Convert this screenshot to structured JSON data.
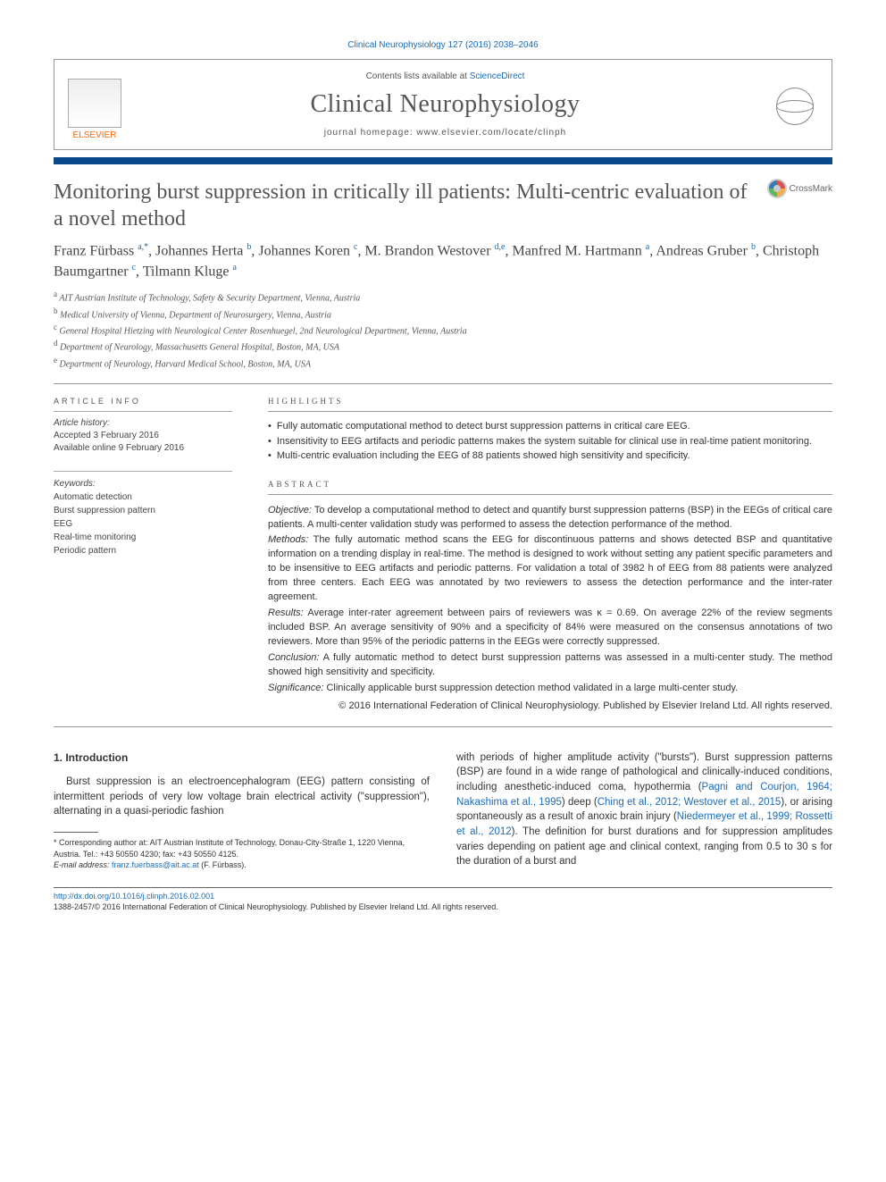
{
  "header": {
    "cite": "Clinical Neurophysiology 127 (2016) 2038–2046",
    "contents_prefix": "Contents lists available at ",
    "contents_link": "ScienceDirect",
    "journal_name": "Clinical Neurophysiology",
    "homepage": "journal homepage: www.elsevier.com/locate/clinph",
    "publisher": "ELSEVIER",
    "crossmark": "CrossMark"
  },
  "article": {
    "title": "Monitoring burst suppression in critically ill patients: Multi-centric evaluation of a novel method",
    "authors_html": "Franz Fürbass <sup>a,*</sup>, Johannes Herta <sup>b</sup>, Johannes Koren <sup>c</sup>, M. Brandon Westover <sup>d,e</sup>, Manfred M. Hartmann <sup>a</sup>, Andreas Gruber <sup>b</sup>, Christoph Baumgartner <sup>c</sup>, Tilmann Kluge <sup>a</sup>",
    "affiliations": [
      "a AIT Austrian Institute of Technology, Safety & Security Department, Vienna, Austria",
      "b Medical University of Vienna, Department of Neurosurgery, Vienna, Austria",
      "c General Hospital Hietzing with Neurological Center Rosenhuegel, 2nd Neurological Department, Vienna, Austria",
      "d Department of Neurology, Massachusetts General Hospital, Boston, MA, USA",
      "e Department of Neurology, Harvard Medical School, Boston, MA, USA"
    ]
  },
  "info": {
    "heading": "ARTICLE INFO",
    "history_label": "Article history:",
    "history1": "Accepted 3 February 2016",
    "history2": "Available online 9 February 2016",
    "keywords_label": "Keywords:",
    "keywords": [
      "Automatic detection",
      "Burst suppression pattern",
      "EEG",
      "Real-time monitoring",
      "Periodic pattern"
    ]
  },
  "highlights": {
    "heading": "HIGHLIGHTS",
    "items": [
      "Fully automatic computational method to detect burst suppression patterns in critical care EEG.",
      "Insensitivity to EEG artifacts and periodic patterns makes the system suitable for clinical use in real-time patient monitoring.",
      "Multi-centric evaluation including the EEG of 88 patients showed high sensitivity and specificity."
    ]
  },
  "abstract": {
    "heading": "ABSTRACT",
    "objective": "To develop a computational method to detect and quantify burst suppression patterns (BSP) in the EEGs of critical care patients. A multi-center validation study was performed to assess the detection performance of the method.",
    "methods": "The fully automatic method scans the EEG for discontinuous patterns and shows detected BSP and quantitative information on a trending display in real-time. The method is designed to work without setting any patient specific parameters and to be insensitive to EEG artifacts and periodic patterns. For validation a total of 3982 h of EEG from 88 patients were analyzed from three centers. Each EEG was annotated by two reviewers to assess the detection performance and the inter-rater agreement.",
    "results": "Average inter-rater agreement between pairs of reviewers was κ = 0.69. On average 22% of the review segments included BSP. An average sensitivity of 90% and a specificity of 84% were measured on the consensus annotations of two reviewers. More than 95% of the periodic patterns in the EEGs were correctly suppressed.",
    "conclusion": "A fully automatic method to detect burst suppression patterns was assessed in a multi-center study. The method showed high sensitivity and specificity.",
    "significance": "Clinically applicable burst suppression detection method validated in a large multi-center study.",
    "copyright": "© 2016 International Federation of Clinical Neurophysiology. Published by Elsevier Ireland Ltd. All rights reserved."
  },
  "body": {
    "sec1_heading": "1. Introduction",
    "col1_p1": "Burst suppression is an electroencephalogram (EEG) pattern consisting of intermittent periods of very low voltage brain electrical activity (\"suppression\"), alternating in a quasi-periodic fashion",
    "col2_p1a": "with periods of higher amplitude activity (\"bursts\"). Burst suppression patterns (BSP) are found in a wide range of pathological and clinically-induced conditions, including anesthetic-induced coma, hypothermia (",
    "ref1": "Pagni and Courjon, 1964; Nakashima et al., 1995",
    "col2_p1b": ") deep (",
    "ref2": "Ching et al., 2012; Westover et al., 2015",
    "col2_p1c": "), or arising spontaneously as a result of anoxic brain injury (",
    "ref3": "Niedermeyer et al., 1999; Rossetti et al., 2012",
    "col2_p1d": "). The definition for burst durations and for suppression amplitudes varies depending on patient age and clinical context, ranging from 0.5 to 30 s for the duration of a burst and"
  },
  "footnote": {
    "corr": "* Corresponding author at: AIT Austrian Institute of Technology, Donau-City-Straße 1, 1220 Vienna, Austria. Tel.: +43 50550 4230; fax: +43 50550 4125.",
    "email_label": "E-mail address:",
    "email": "franz.fuerbass@ait.ac.at",
    "email_suffix": " (F. Fürbass)."
  },
  "footer": {
    "doi": "http://dx.doi.org/10.1016/j.clinph.2016.02.001",
    "issn_line": "1388-2457/© 2016 International Federation of Clinical Neurophysiology. Published by Elsevier Ireland Ltd. All rights reserved."
  },
  "colors": {
    "link": "#1a6bb8",
    "rule": "#0b4a8a",
    "publisher": "#ff6600"
  }
}
